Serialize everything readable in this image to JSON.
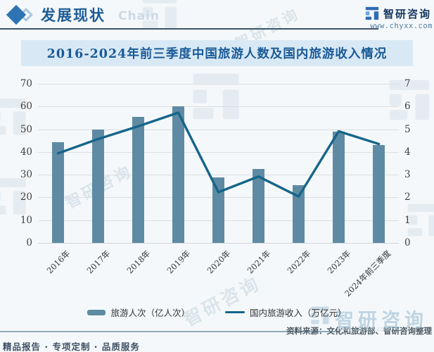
{
  "header": {
    "section_title": "发展现状",
    "section_watermark": "Chain",
    "brand": "智研咨询",
    "website": "www.chyxx.com"
  },
  "chart_data": {
    "type": "bar",
    "title": "2016-2024年前三季度中国旅游人数及国内旅游收入情况",
    "categories": [
      "2016年",
      "2017年",
      "2018年",
      "2019年",
      "2020年",
      "2021年",
      "2022年",
      "2023年",
      "2024年前三季度"
    ],
    "series": [
      {
        "name": "旅游人次（亿人次）",
        "type": "bar",
        "axis": "left",
        "color": "#5e8ba3",
        "values": [
          44.4,
          50.0,
          55.4,
          60.1,
          28.8,
          32.5,
          25.3,
          48.9,
          42.9
        ]
      },
      {
        "name": "国内旅游收入（万亿元）",
        "type": "line",
        "axis": "right",
        "color": "#15658a",
        "values": [
          3.94,
          4.57,
          5.13,
          5.73,
          2.23,
          2.92,
          2.04,
          4.91,
          4.35
        ]
      }
    ],
    "left_axis": {
      "min": 0,
      "max": 70,
      "ticks": [
        0,
        10,
        20,
        30,
        40,
        50,
        60,
        70
      ]
    },
    "right_axis": {
      "min": 0,
      "max": 7,
      "ticks": [
        0,
        1,
        2,
        3,
        4,
        5,
        6,
        7
      ]
    },
    "grid": true,
    "legend_position": "bottom"
  },
  "footer": {
    "source": "资料来源：文化和旅游部、智研咨询整理",
    "tagline": "精品报告 · 专项定制 · 品质服务"
  },
  "watermarks": {
    "brand": "智研咨询",
    "site": "www.chyxx.com"
  },
  "colors": {
    "accent": "#2e74b5",
    "title_bar_bg": "#d8e9f5",
    "title_text": "#1a5a96",
    "bar": "#5e8ba3",
    "line": "#15658a",
    "grid": "#dcdfe2"
  },
  "icons": {
    "header_bullet": "diamond-icon",
    "brand_logo": "zhiyan-logo-icon"
  }
}
